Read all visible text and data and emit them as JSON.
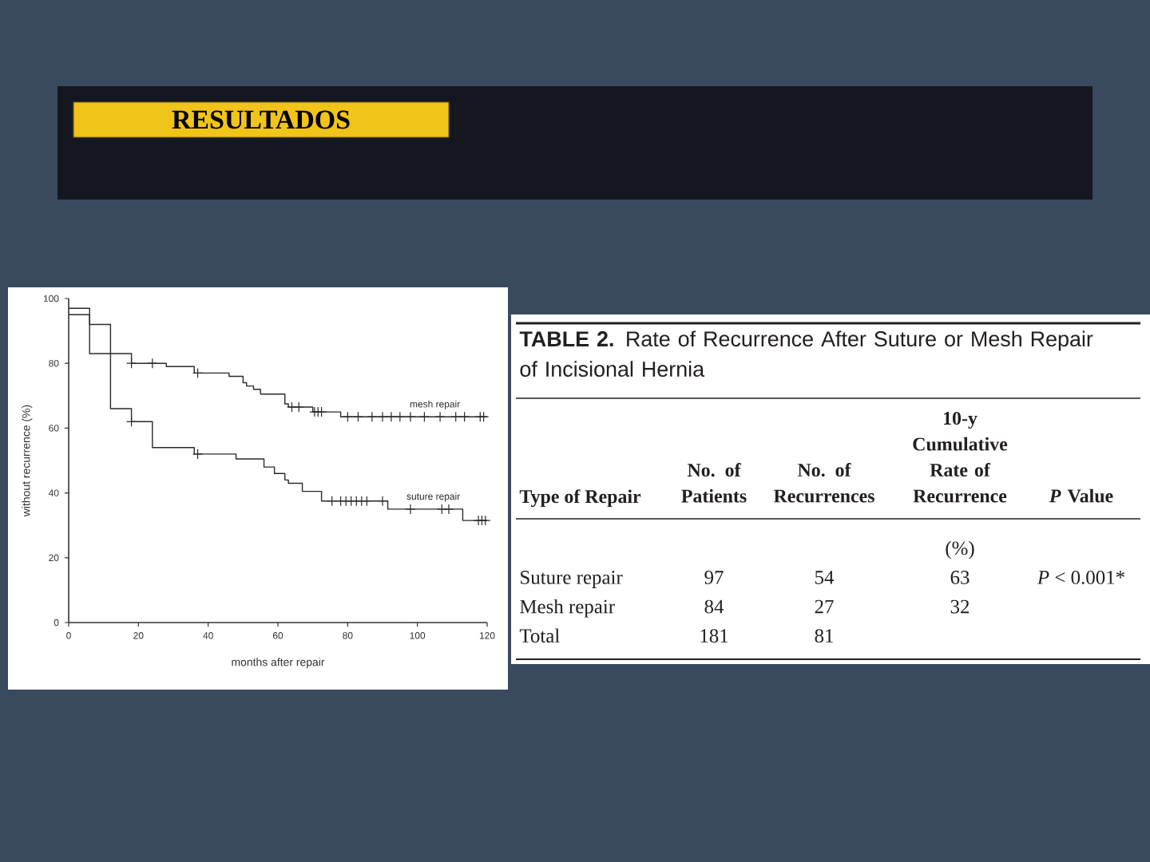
{
  "chart_data": [
    {
      "type": "step",
      "title": "RESULTADOS",
      "xlabel": "months after repair",
      "ylabel": "without recurrence (%)",
      "xlim": [
        0,
        120
      ],
      "ylim": [
        0,
        100
      ],
      "xticks": [
        0,
        20,
        40,
        60,
        80,
        100,
        120
      ],
      "yticks": [
        0,
        20,
        40,
        60,
        80,
        100
      ],
      "series": [
        {
          "name": "mesh repair",
          "color": "#2a2a2a",
          "x": [
            0,
            6,
            18,
            28,
            36,
            46,
            50,
            51,
            53,
            55,
            62,
            63,
            70,
            78,
            120
          ],
          "values": [
            95,
            83,
            80,
            79,
            77,
            76,
            74,
            73,
            72,
            70.5,
            67.5,
            66.5,
            65,
            63.5,
            63.5
          ]
        },
        {
          "name": "suture repair",
          "color": "#2a2a2a",
          "x": [
            0,
            6,
            12,
            18,
            24,
            36,
            48,
            56,
            59,
            62,
            63,
            67,
            72.5,
            91.5,
            113,
            120
          ],
          "values": [
            97,
            92,
            66,
            62,
            54,
            52,
            50.5,
            48,
            46,
            44,
            43,
            40.5,
            37.5,
            35,
            31.5,
            31.5
          ]
        },
        {
          "type": "scatter",
          "marker": "cross",
          "color": "#2a2a2a",
          "x": [
            18,
            24,
            37,
            64,
            66,
            70.5,
            71.5,
            72.5,
            80,
            83,
            87,
            90,
            92.5,
            95,
            98,
            102,
            106.5,
            111,
            113.5,
            118,
            119
          ],
          "values": [
            80,
            80,
            77,
            66.5,
            66.5,
            65,
            65,
            65,
            63.5,
            63.5,
            63.5,
            63.5,
            63.5,
            63.5,
            63.5,
            63.5,
            63.5,
            63.5,
            63.5,
            63.5,
            63.5
          ]
        },
        {
          "type": "scatter",
          "marker": "cross",
          "color": "#2a2a2a",
          "x": [
            18,
            37,
            75.5,
            78,
            79.5,
            81,
            82.5,
            84,
            85.5,
            90,
            98,
            107,
            109,
            117.5,
            118.5,
            119.5
          ],
          "values": [
            62,
            52,
            37.5,
            37.5,
            37.5,
            37.5,
            37.5,
            37.5,
            37.5,
            37.5,
            35,
            35,
            35,
            31.5,
            31.5,
            31.5
          ]
        }
      ]
    },
    {
      "type": "other",
      "title": "**TABLE 2.** Rate of Recurrence After Suture or Mesh Repair of Incisional Hernia",
      "ylabel": "Type of Repair",
      "categories": [
        "No. of Patients",
        "No. of Recurrences",
        "10-y Cumulative Rate of Recurrence",
        "*P* Value"
      ],
      "y_categories": [
        null,
        "Suture repair",
        "Mesh repair",
        "Total"
      ],
      "cell_labels": [
        [
          null,
          null,
          "(%)",
          null
        ],
        [
          "97",
          "54",
          "63",
          "*P* < 0.001*"
        ],
        [
          "84",
          "27",
          "32",
          null
        ],
        [
          "181",
          "81",
          null,
          null
        ]
      ]
    }
  ]
}
